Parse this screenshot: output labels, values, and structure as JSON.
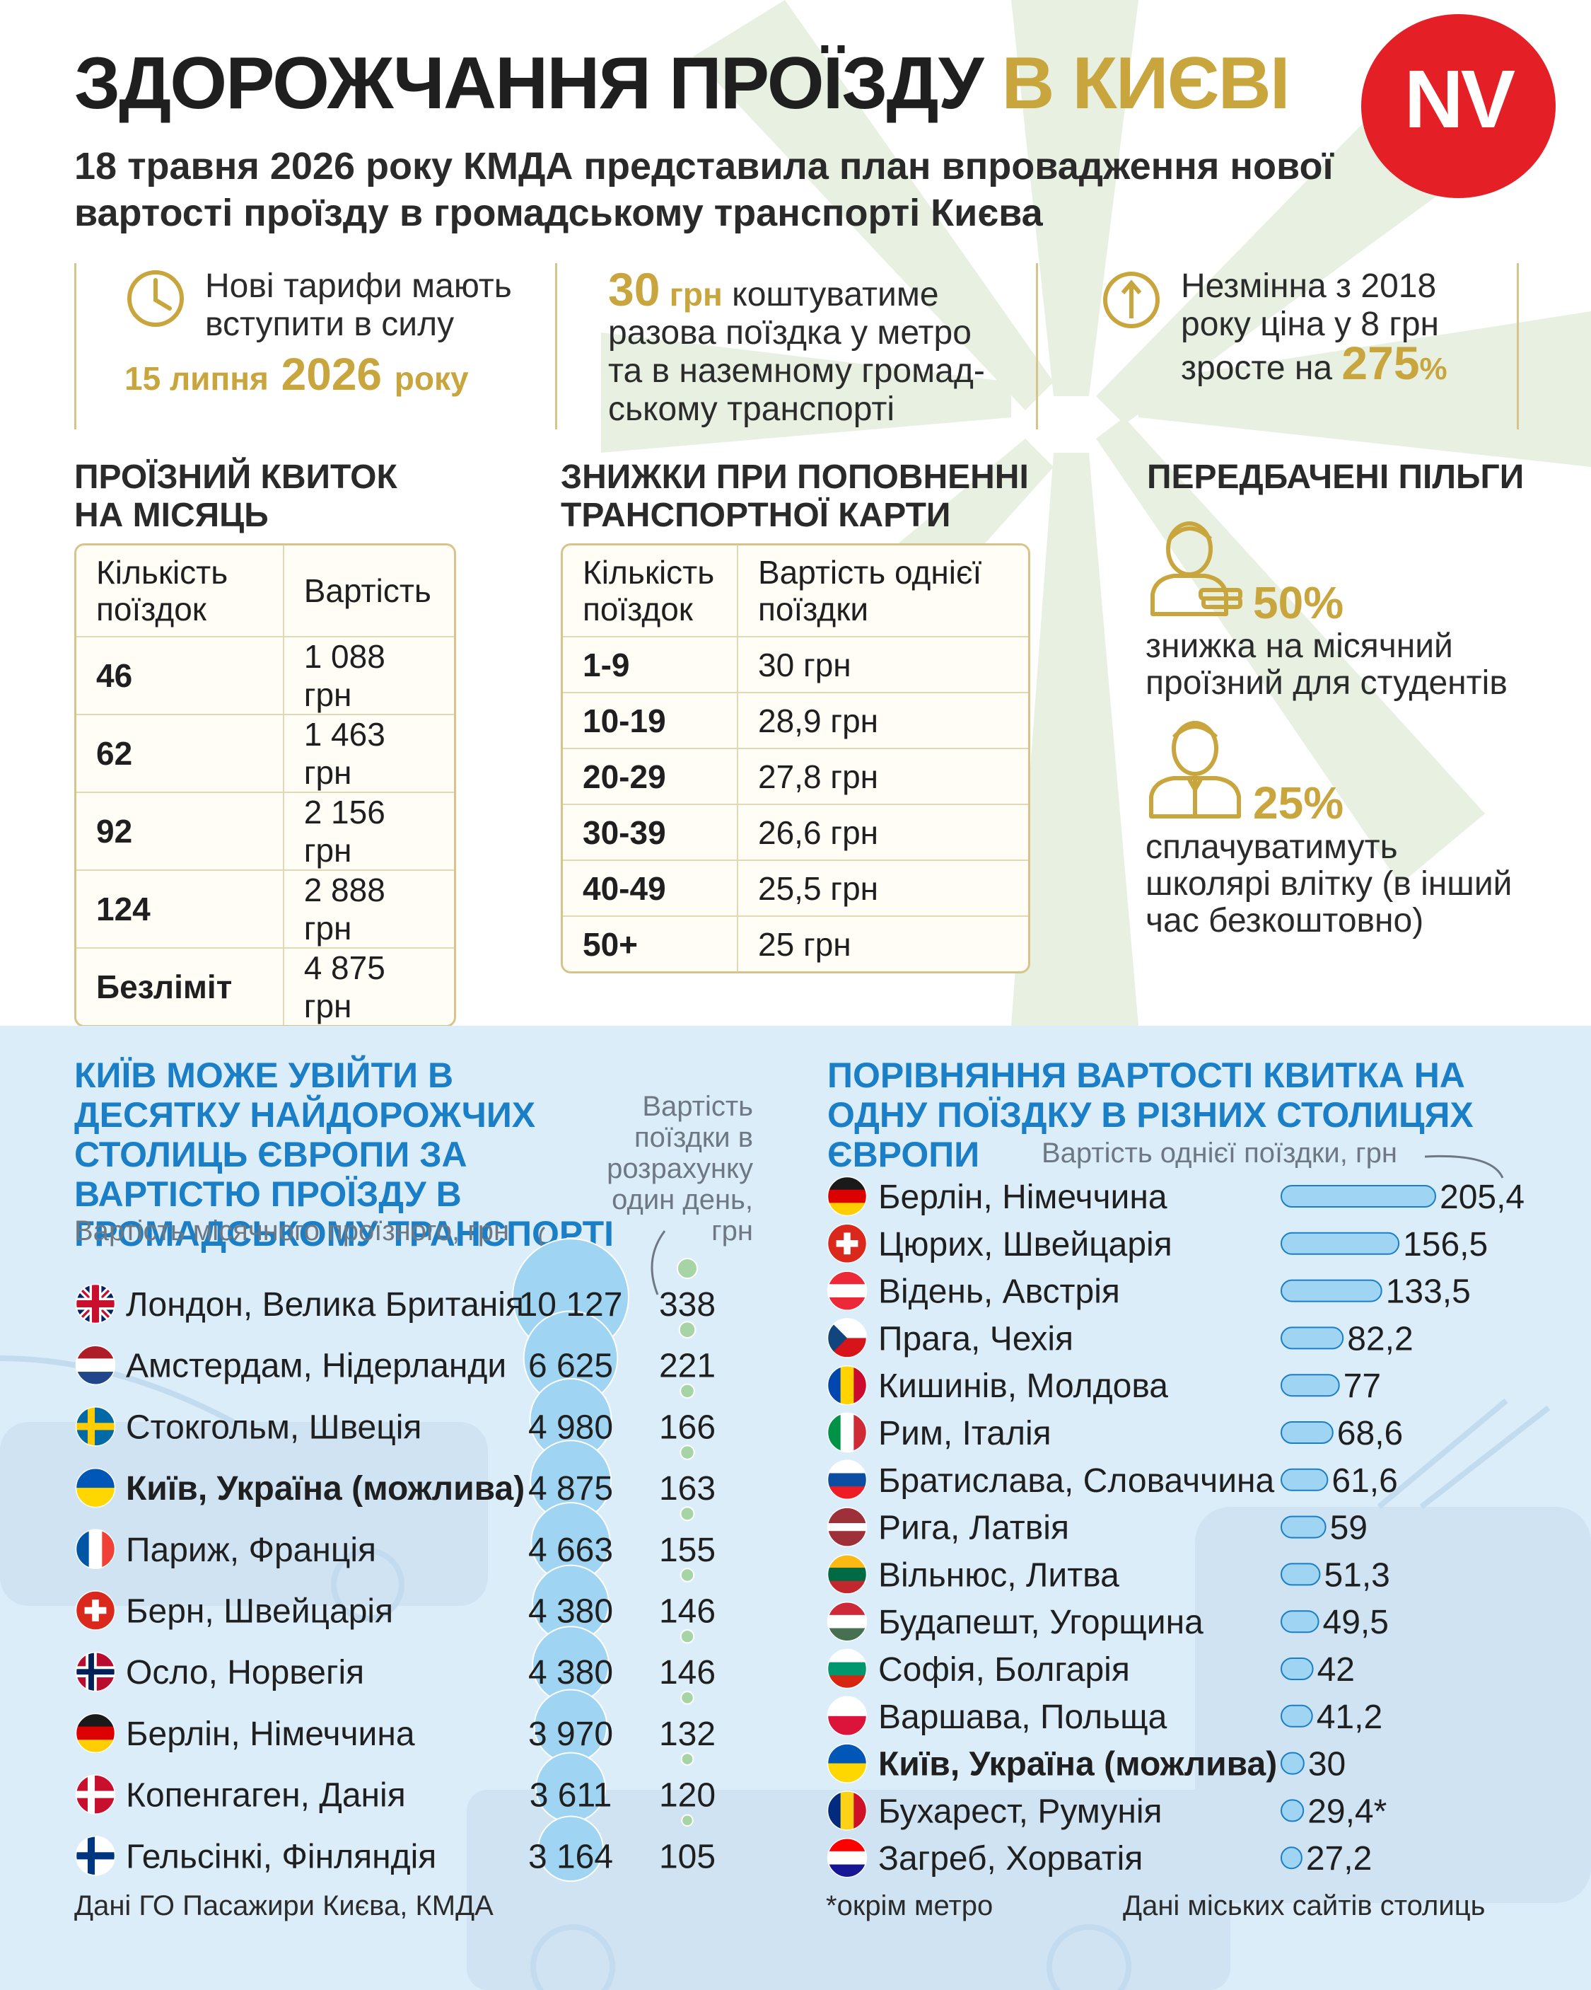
{
  "title": {
    "part1": "ЗДОРОЖЧАННЯ ПРОЇЗДУ ",
    "part2": "В КИЄВІ"
  },
  "logo": "NV",
  "subtitle": "18 травня 2026 року КМДА представила план впровадження нової вартості проїзду в громадському транспорті Києва",
  "facts": [
    {
      "icon": "clock-icon",
      "text": "Нові тарифи мають вступити в силу",
      "date": "15 липня",
      "year": "2026",
      "suffix": "року"
    },
    {
      "price": "30",
      "unit": "грн",
      "text": "коштуватиме разова поїздка у метро та в наземному громад-ському транспорті"
    },
    {
      "icon": "arrow-up-icon",
      "text": "Незмінна з 2018 року ціна у 8 грн зросте на",
      "pct": "275",
      "pct_sign": "%"
    }
  ],
  "monthly": {
    "heading": "ПРОЇЗНИЙ КВИТОК НА МІСЯЦЬ",
    "headers": [
      "Кількість поїздок",
      "Вартість"
    ],
    "rows": [
      [
        "46",
        "1 088 грн"
      ],
      [
        "62",
        "1 463 грн"
      ],
      [
        "92",
        "2 156 грн"
      ],
      [
        "124",
        "2 888 грн"
      ],
      [
        "Безліміт",
        "4 875 грн"
      ]
    ]
  },
  "discounts": {
    "heading": "ЗНИЖКИ ПРИ ПОПОВНЕННІ ТРАНСПОРТНОЇ КАРТИ",
    "headers": [
      "Кількість поїздок",
      "Вартість однієї поїздки"
    ],
    "rows": [
      [
        "1-9",
        "30 грн"
      ],
      [
        "10-19",
        "28,9 грн"
      ],
      [
        "20-29",
        "27,8 грн"
      ],
      [
        "30-39",
        "26,6 грн"
      ],
      [
        "40-49",
        "25,5 грн"
      ],
      [
        "50+",
        "25 грн"
      ]
    ]
  },
  "benefits": {
    "heading": "ПЕРЕДБАЧЕНІ ПІЛЬГИ",
    "items": [
      {
        "icon": "student-icon",
        "pct": "50%",
        "text": "знижка на місячний проїзний для студентів"
      },
      {
        "icon": "schoolkid-icon",
        "pct": "25%",
        "text": "сплачуватимуть школярі влітку (в інший час безкоштовно)"
      }
    ]
  },
  "colors": {
    "gold": "#c8a53d",
    "red": "#e42026",
    "blue_heading": "#1a7fc7",
    "bubble": "#9fd4f2",
    "dot": "#a6d4a4",
    "bar": "#9fd4f2",
    "panel": "#dcedfa"
  },
  "chart_data": [
    {
      "type": "scatter",
      "title": "КИЇВ МОЖЕ УВІЙТИ В ДЕСЯТКУ НАЙДОРОЖЧИХ СТОЛИЦЬ ЄВРОПИ ЗА ВАРТІСТЮ ПРОЇЗДУ В ГРОМАДСЬКОМУ ТРАНСПОРТІ",
      "monthly_label": "Вартість місячного проїзного, грн",
      "daily_label": "Вартість поїздки в розрахунку один день, грн",
      "source": "Дані ГО Пасажири Києва, КМДА",
      "categories": [
        "Лондон, Велика Британія",
        "Амстердам, Нідерланди",
        "Стокгольм, Швеція",
        "Київ, Україна (можлива)",
        "Париж, Франція",
        "Берн, Швейцарія",
        "Осло, Норвегія",
        "Берлін, Німеччина",
        "Копенгаген, Данія",
        "Гельсінкі, Фінляндія"
      ],
      "flags": [
        "gb",
        "nl",
        "se",
        "ua",
        "fr",
        "ch",
        "no",
        "de",
        "dk",
        "fi"
      ],
      "highlight": "Київ, Україна (можлива)",
      "series": [
        {
          "name": "Вартість місячного проїзного, грн",
          "values": [
            10127,
            6625,
            4980,
            4875,
            4663,
            4380,
            4380,
            3970,
            3611,
            3164
          ],
          "labels": [
            "10 127",
            "6 625",
            "4 980",
            "4 875",
            "4 663",
            "4 380",
            "4 380",
            "3 970",
            "3 611",
            "3 164"
          ]
        },
        {
          "name": "Вартість поїздки в розрахунку один день, грн",
          "values": [
            338,
            221,
            166,
            163,
            155,
            146,
            146,
            132,
            120,
            105
          ],
          "labels": [
            "338",
            "221",
            "166",
            "163",
            "155",
            "146",
            "146",
            "132",
            "120",
            "105"
          ]
        }
      ]
    },
    {
      "type": "bar",
      "title": "ПОРІВНЯННЯ ВАРТОСТІ КВИТКА НА ОДНУ ПОЇЗДКУ В РІЗНИХ СТОЛИЦЯХ ЄВРОПИ",
      "value_label": "Вартість однієї поїздки, грн",
      "note": "*окрім метро",
      "source": "Дані міських сайтів столиць",
      "categories": [
        "Берлін, Німеччина",
        "Цюрих, Швейцарія",
        "Відень, Австрія",
        "Прага, Чехія",
        "Кишинів, Молдова",
        "Рим, Італія",
        "Братислава, Словаччина",
        "Рига, Латвія",
        "Вільнюс, Литва",
        "Будапешт, Угорщина",
        "Софія, Болгарія",
        "Варшава, Польща",
        "Київ, Україна (можлива)",
        "Бухарест, Румунія",
        "Загреб, Хорватія"
      ],
      "flags": [
        "de",
        "ch",
        "at",
        "cz",
        "md",
        "it",
        "sk",
        "lv",
        "lt",
        "hu",
        "bg",
        "pl",
        "ua",
        "ro",
        "hr"
      ],
      "highlight": "Київ, Україна (можлива)",
      "values": [
        205.4,
        156.5,
        133.5,
        82.2,
        77,
        68.6,
        61.6,
        59,
        51.3,
        49.5,
        42,
        41.2,
        30,
        29.4,
        27.2
      ],
      "labels": [
        "205,4",
        "156,5",
        "133,5",
        "82,2",
        "77",
        "68,6",
        "61,6",
        "59",
        "51,3",
        "49,5",
        "42",
        "41,2",
        "30",
        "29,4*",
        "27,2"
      ]
    }
  ]
}
